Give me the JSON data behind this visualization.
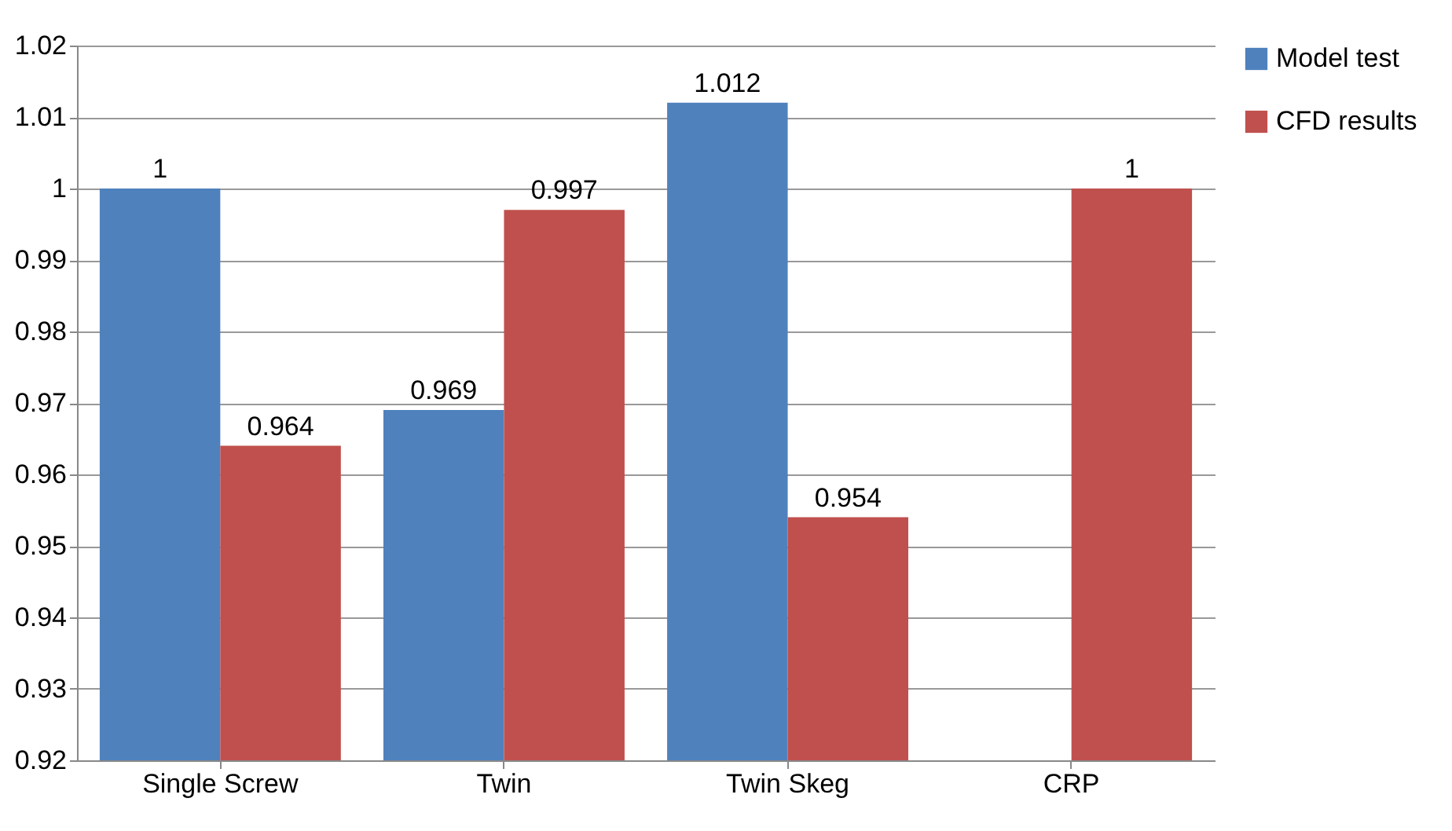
{
  "chart_data": {
    "type": "bar",
    "categories": [
      "Single Screw",
      "Twin",
      "Twin Skeg",
      "CRP"
    ],
    "series": [
      {
        "name": "Model test",
        "color": "#4f81bd",
        "values": [
          1,
          0.969,
          1.012,
          null
        ]
      },
      {
        "name": "CFD results",
        "color": "#c0504d",
        "values": [
          0.964,
          0.997,
          0.954,
          1
        ]
      }
    ],
    "ylim": [
      0.92,
      1.02
    ],
    "yticks": [
      0.92,
      0.93,
      0.94,
      0.95,
      0.96,
      0.97,
      0.98,
      0.99,
      1,
      1.01,
      1.02
    ],
    "grid": "y",
    "legend": "right",
    "data_labels": true
  }
}
